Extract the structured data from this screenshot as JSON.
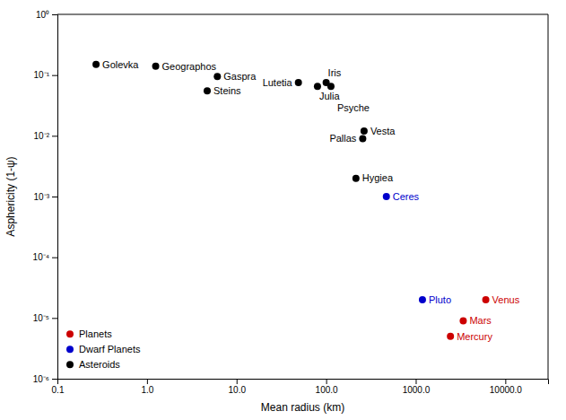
{
  "chart_data": {
    "type": "scatter",
    "xlabel": "Mean radius (km)",
    "ylabel": "Asphericity (1-ψ)",
    "log": true,
    "grid": false,
    "legend": "lower left",
    "xlim": [
      0.1,
      30000.0
    ],
    "ylim": [
      1e-06,
      1.0
    ],
    "xticks": [
      0.1,
      {
        "value": 1.0,
        "label": "1.0"
      },
      {
        "value": 10.0,
        "label": "10.0"
      },
      {
        "value": 100.0,
        "label": "100.0"
      },
      {
        "value": 1000.0,
        "label": "1000.0"
      },
      {
        "value": 10000.0,
        "label": "10000.0"
      }
    ],
    "yticks": [
      {
        "value": 1e-06,
        "label": "10⁻⁶"
      },
      {
        "value": 1e-05,
        "label": "10⁻⁵"
      },
      {
        "value": 0.0001,
        "label": "10⁻⁴"
      },
      {
        "value": 0.001,
        "label": "10⁻³"
      },
      {
        "value": 0.01,
        "label": "10⁻²"
      },
      {
        "value": 0.1,
        "label": "10⁻¹"
      },
      {
        "value": 1.0,
        "label": "10⁰"
      }
    ],
    "series": [
      {
        "name": "Planets",
        "color": "#cc0000",
        "x": [
          2440,
          3390,
          6051
        ],
        "values": [
          5e-06,
          9e-06,
          2e-05
        ],
        "point_labels": [
          "Mercury",
          "Mars",
          "Venus"
        ]
      },
      {
        "name": "Dwarf Planets",
        "color": "#0000cc",
        "x": [
          470,
          1188
        ],
        "values": [
          0.001,
          2e-05
        ],
        "point_labels": [
          "Ceres",
          "Pluto"
        ]
      },
      {
        "name": "Asteroids",
        "color": "#000000",
        "x": [
          0.27,
          1.25,
          6.1,
          4.7,
          49,
          80,
          100,
          113,
          265,
          256,
          215
        ],
        "values": [
          0.15,
          0.14,
          0.095,
          0.055,
          0.075,
          0.065,
          0.075,
          0.065,
          0.012,
          0.009,
          0.002
        ],
        "point_labels": [
          "Golevka",
          "Geographos",
          "Gaspra",
          "Steins",
          "Lutetia",
          "Julia",
          "Iris",
          "Psyche",
          "Vesta",
          "Pallas",
          "Hygiea"
        ]
      }
    ]
  }
}
